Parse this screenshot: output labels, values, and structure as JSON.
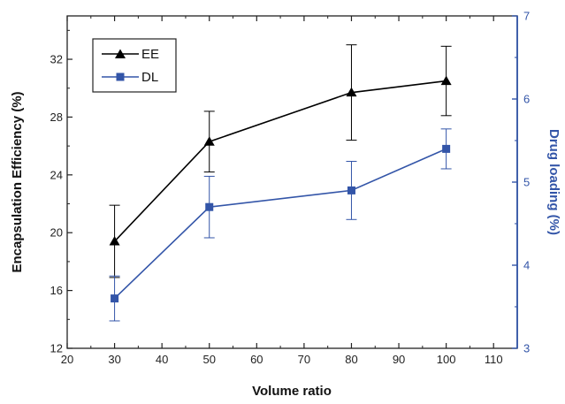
{
  "chart_data": {
    "type": "line",
    "title": "",
    "xlabel": "Volume ratio",
    "ylabel": "Encapsulation Efficiency (%)",
    "y2label": "Drug loading (%)",
    "xlim": [
      20,
      115
    ],
    "ylim": [
      12,
      35
    ],
    "y2lim": [
      3,
      7
    ],
    "x_ticks": [
      20,
      30,
      40,
      50,
      60,
      70,
      80,
      90,
      100,
      110
    ],
    "y_ticks": [
      12,
      16,
      20,
      24,
      28,
      32
    ],
    "y2_ticks": [
      3,
      4,
      5,
      6,
      7
    ],
    "grid": false,
    "legend_position": "top-left",
    "series": [
      {
        "name": "EE",
        "axis": "left",
        "color": "#000000",
        "marker": "triangle",
        "x": [
          30,
          50,
          80,
          100
        ],
        "values": [
          19.4,
          26.3,
          29.7,
          30.5
        ],
        "error": [
          2.5,
          2.1,
          3.3,
          2.4
        ]
      },
      {
        "name": "DL",
        "axis": "right",
        "color": "#3355a8",
        "marker": "square",
        "x": [
          30,
          50,
          80,
          100
        ],
        "values": [
          3.6,
          4.7,
          4.9,
          5.4
        ],
        "error": [
          0.27,
          0.37,
          0.35,
          0.24
        ]
      }
    ]
  }
}
